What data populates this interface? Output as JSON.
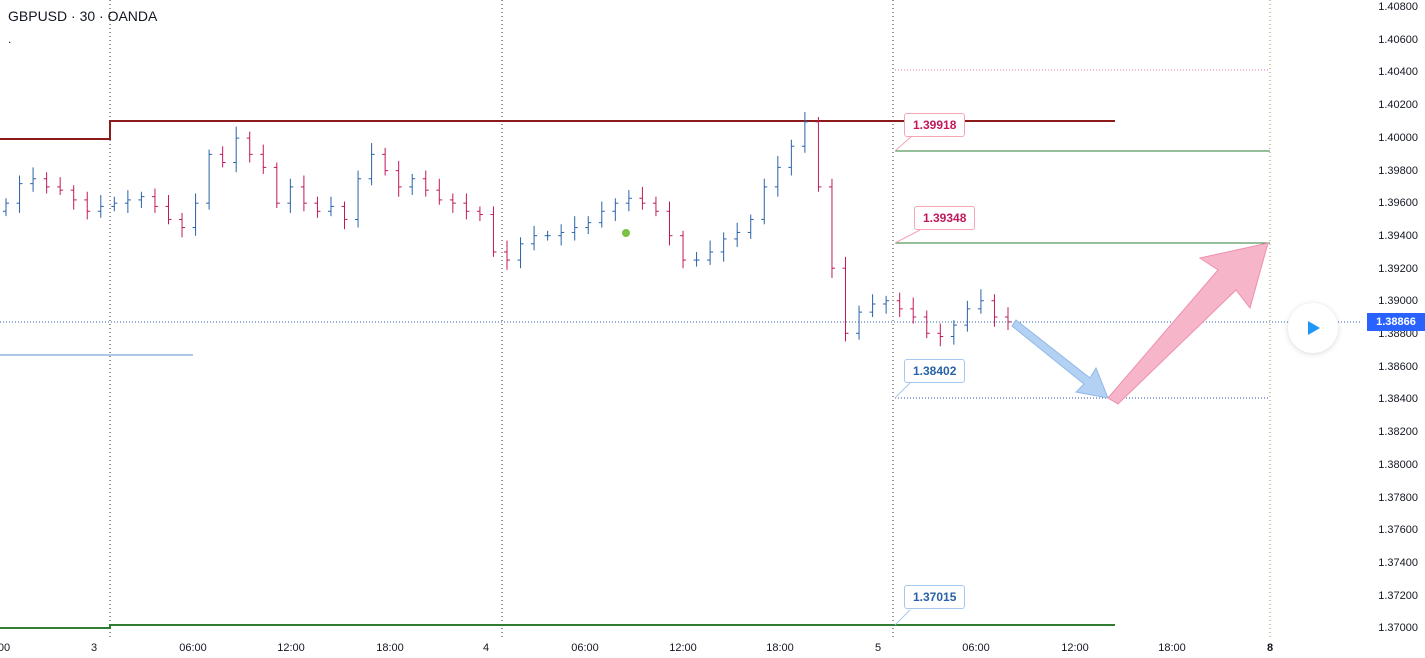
{
  "symbol": {
    "title": "GBPUSD · 30 · OANDA",
    "marker": "."
  },
  "colors": {
    "bull": "#2962a8",
    "bear": "#c2185b",
    "resistance": "#8b1a1a",
    "target": "#2e7d32",
    "accent": "#2962ff"
  },
  "price_axis": {
    "labels": [
      "1.40800",
      "1.40600",
      "1.40400",
      "1.40200",
      "1.40000",
      "1.39800",
      "1.39600",
      "1.39400",
      "1.39200",
      "1.39000",
      "1.38800",
      "1.38600",
      "1.38400",
      "1.38200",
      "1.38000",
      "1.37800",
      "1.37600",
      "1.37400",
      "1.37200",
      "1.37000"
    ],
    "current_price": "1.38866"
  },
  "time_axis": {
    "labels": [
      "00",
      "3",
      "06:00",
      "12:00",
      "18:00",
      "4",
      "06:00",
      "12:00",
      "18:00",
      "5",
      "06:00",
      "12:00",
      "18:00",
      "8"
    ]
  },
  "callouts": {
    "upper_target": "1.39918",
    "mid_target": "1.39348",
    "support": "1.38402",
    "lower_support": "1.37015"
  },
  "controls": {
    "play_icon": "play-icon"
  },
  "chart_data": {
    "type": "ohlc",
    "instrument": "GBPUSD",
    "interval": "30",
    "ylim": [
      1.37,
      1.408
    ],
    "close_values": [
      1.396,
      1.3972,
      1.3975,
      1.397,
      1.3968,
      1.3962,
      1.3955,
      1.3958,
      1.396,
      1.3962,
      1.3964,
      1.3958,
      1.395,
      1.3945,
      1.396,
      1.399,
      1.3985,
      1.4,
      1.399,
      1.3982,
      1.396,
      1.397,
      1.396,
      1.3955,
      1.3958,
      1.395,
      1.3975,
      1.399,
      1.398,
      1.397,
      1.3975,
      1.3968,
      1.3962,
      1.396,
      1.3955,
      1.3953,
      1.393,
      1.3925,
      1.3935,
      1.394,
      1.394,
      1.3942,
      1.3945,
      1.3948,
      1.3955,
      1.396,
      1.3963,
      1.396,
      1.3955,
      1.394,
      1.3925,
      1.3925,
      1.393,
      1.3938,
      1.3942,
      1.395,
      1.397,
      1.3982,
      1.3995,
      1.401,
      1.397,
      1.392,
      1.388,
      1.3893,
      1.3898,
      1.39,
      1.3895,
      1.389,
      1.388,
      1.3878,
      1.3885,
      1.3895,
      1.39,
      1.389,
      1.3887
    ],
    "levels": {
      "resistance": 1.401,
      "upper_target": 1.39918,
      "mid_target": 1.39348,
      "current": 1.38866,
      "support": 1.38402,
      "lower_support": 1.37015
    }
  }
}
